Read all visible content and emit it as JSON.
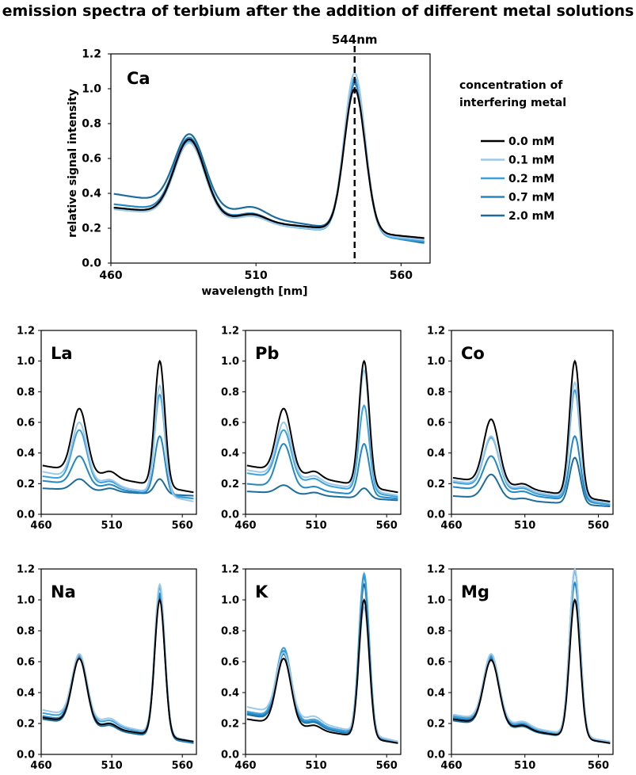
{
  "figure": {
    "title": "emission spectra of terbium after the addition of different metal solutions"
  },
  "legend": {
    "title_line1": "concentration of",
    "title_line2": "interfering metal",
    "entries": [
      "0.0 mM",
      "0.1 mM",
      "0.2 mM",
      "0.7 mM",
      "2.0 mM"
    ],
    "colors": [
      "#000000",
      "#9cc9ea",
      "#3aa1dc",
      "#2288c4",
      "#1c6d9e"
    ]
  },
  "chart_data": [
    {
      "type": "line",
      "panel": "Ca",
      "title": "Ca",
      "xlabel": "wavelength [nm]",
      "ylabel": "relative signal intensity",
      "xlim": [
        460,
        570
      ],
      "ylim": [
        0,
        1.2
      ],
      "xticks": [
        "460",
        "510",
        "560"
      ],
      "yticks": [
        "0.0",
        "0.2",
        "0.4",
        "0.6",
        "0.8",
        "1.0",
        "1.2"
      ],
      "marker": {
        "x": 544,
        "label": "544nm"
      },
      "series": [
        {
          "name": "0.0 mM",
          "base": 0.32,
          "peak1": 0.71,
          "peak2": 1.0,
          "tail": 0.14
        },
        {
          "name": "0.1 mM",
          "base": 0.31,
          "peak1": 0.69,
          "peak2": 1.09,
          "tail": 0.13
        },
        {
          "name": "0.2 mM",
          "base": 0.32,
          "peak1": 0.7,
          "peak2": 1.06,
          "tail": 0.12
        },
        {
          "name": "0.7 mM",
          "base": 0.34,
          "peak1": 0.72,
          "peak2": 1.04,
          "tail": 0.12
        },
        {
          "name": "2.0 mM",
          "base": 0.4,
          "peak1": 0.74,
          "peak2": 1.03,
          "tail": 0.11
        }
      ]
    },
    {
      "type": "line",
      "panel": "La",
      "title": "La",
      "xlim": [
        460,
        570
      ],
      "ylim": [
        0,
        1.2
      ],
      "xticks": [
        "460",
        "510",
        "560"
      ],
      "yticks": [
        "0.0",
        "0.2",
        "0.4",
        "0.6",
        "0.8",
        "1.0",
        "1.2"
      ],
      "series": [
        {
          "name": "0.0 mM",
          "base": 0.32,
          "peak1": 0.69,
          "peak2": 1.0,
          "tail": 0.14
        },
        {
          "name": "0.1 mM",
          "base": 0.28,
          "peak1": 0.6,
          "peak2": 0.84,
          "tail": 0.08
        },
        {
          "name": "0.2 mM",
          "base": 0.25,
          "peak1": 0.55,
          "peak2": 0.78,
          "tail": 0.1
        },
        {
          "name": "0.7 mM",
          "base": 0.22,
          "peak1": 0.38,
          "peak2": 0.51,
          "tail": 0.1
        },
        {
          "name": "2.0 mM",
          "base": 0.17,
          "peak1": 0.23,
          "peak2": 0.23,
          "tail": 0.12
        }
      ]
    },
    {
      "type": "line",
      "panel": "Pb",
      "title": "Pb",
      "xlim": [
        460,
        570
      ],
      "ylim": [
        0,
        1.2
      ],
      "xticks": [
        "460",
        "510",
        "560"
      ],
      "yticks": [
        "0.0",
        "0.2",
        "0.4",
        "0.6",
        "0.8",
        "1.0",
        "1.2"
      ],
      "series": [
        {
          "name": "0.0 mM",
          "base": 0.32,
          "peak1": 0.69,
          "peak2": 1.0,
          "tail": 0.14
        },
        {
          "name": "0.1 mM",
          "base": 0.29,
          "peak1": 0.6,
          "peak2": 0.94,
          "tail": 0.12
        },
        {
          "name": "0.2 mM",
          "base": 0.27,
          "peak1": 0.55,
          "peak2": 0.71,
          "tail": 0.11
        },
        {
          "name": "0.7 mM",
          "base": 0.2,
          "peak1": 0.46,
          "peak2": 0.46,
          "tail": 0.1
        },
        {
          "name": "2.0 mM",
          "base": 0.15,
          "peak1": 0.19,
          "peak2": 0.17,
          "tail": 0.09
        }
      ]
    },
    {
      "type": "line",
      "panel": "Co",
      "title": "Co",
      "xlim": [
        460,
        570
      ],
      "ylim": [
        0,
        1.2
      ],
      "xticks": [
        "460",
        "510",
        "560"
      ],
      "yticks": [
        "0.0",
        "0.2",
        "0.4",
        "0.6",
        "0.8",
        "1.0",
        "1.2"
      ],
      "series": [
        {
          "name": "0.0 mM",
          "base": 0.24,
          "peak1": 0.62,
          "peak2": 1.0,
          "tail": 0.08
        },
        {
          "name": "0.1 mM",
          "base": 0.22,
          "peak1": 0.51,
          "peak2": 0.86,
          "tail": 0.07
        },
        {
          "name": "0.2 mM",
          "base": 0.21,
          "peak1": 0.5,
          "peak2": 0.81,
          "tail": 0.06
        },
        {
          "name": "0.7 mM",
          "base": 0.18,
          "peak1": 0.38,
          "peak2": 0.51,
          "tail": 0.06
        },
        {
          "name": "2.0 mM",
          "base": 0.12,
          "peak1": 0.26,
          "peak2": 0.37,
          "tail": 0.05
        }
      ]
    },
    {
      "type": "line",
      "panel": "Na",
      "title": "Na",
      "xlim": [
        460,
        570
      ],
      "ylim": [
        0,
        1.2
      ],
      "xticks": [
        "460",
        "510",
        "560"
      ],
      "yticks": [
        "0.0",
        "0.2",
        "0.4",
        "0.6",
        "0.8",
        "1.0",
        "1.2"
      ],
      "series": [
        {
          "name": "0.0 mM",
          "base": 0.24,
          "peak1": 0.62,
          "peak2": 1.0,
          "tail": 0.08
        },
        {
          "name": "0.1 mM",
          "base": 0.29,
          "peak1": 0.65,
          "peak2": 1.1,
          "tail": 0.08
        },
        {
          "name": "0.2 mM",
          "base": 0.27,
          "peak1": 0.64,
          "peak2": 1.08,
          "tail": 0.08
        },
        {
          "name": "0.7 mM",
          "base": 0.25,
          "peak1": 0.63,
          "peak2": 1.04,
          "tail": 0.07
        },
        {
          "name": "2.0 mM",
          "base": 0.23,
          "peak1": 0.62,
          "peak2": 1.02,
          "tail": 0.07
        }
      ]
    },
    {
      "type": "line",
      "panel": "K",
      "title": "K",
      "xlim": [
        460,
        570
      ],
      "ylim": [
        0,
        1.2
      ],
      "xticks": [
        "460",
        "510",
        "560"
      ],
      "yticks": [
        "0.0",
        "0.2",
        "0.4",
        "0.6",
        "0.8",
        "1.0",
        "1.2"
      ],
      "series": [
        {
          "name": "0.0 mM",
          "base": 0.23,
          "peak1": 0.62,
          "peak2": 1.0,
          "tail": 0.07
        },
        {
          "name": "0.1 mM",
          "base": 0.31,
          "peak1": 0.66,
          "peak2": 0.95,
          "tail": 0.08
        },
        {
          "name": "0.2 mM",
          "base": 0.28,
          "peak1": 0.69,
          "peak2": 1.17,
          "tail": 0.08
        },
        {
          "name": "0.7 mM",
          "base": 0.27,
          "peak1": 0.67,
          "peak2": 1.15,
          "tail": 0.07
        },
        {
          "name": "2.0 mM",
          "base": 0.26,
          "peak1": 0.65,
          "peak2": 1.1,
          "tail": 0.07
        }
      ]
    },
    {
      "type": "line",
      "panel": "Mg",
      "title": "Mg",
      "xlim": [
        460,
        570
      ],
      "ylim": [
        0,
        1.2
      ],
      "xticks": [
        "460",
        "510",
        "560"
      ],
      "yticks": [
        "0.0",
        "0.2",
        "0.4",
        "0.6",
        "0.8",
        "1.0",
        "1.2"
      ],
      "series": [
        {
          "name": "0.0 mM",
          "base": 0.23,
          "peak1": 0.61,
          "peak2": 1.0,
          "tail": 0.07
        },
        {
          "name": "0.1 mM",
          "base": 0.26,
          "peak1": 0.65,
          "peak2": 1.2,
          "tail": 0.08
        },
        {
          "name": "0.2 mM",
          "base": 0.25,
          "peak1": 0.64,
          "peak2": 1.19,
          "tail": 0.07
        },
        {
          "name": "0.7 mM",
          "base": 0.24,
          "peak1": 0.63,
          "peak2": 1.11,
          "tail": 0.07
        },
        {
          "name": "2.0 mM",
          "base": 0.22,
          "peak1": 0.62,
          "peak2": 1.19,
          "tail": 0.07
        }
      ]
    }
  ]
}
